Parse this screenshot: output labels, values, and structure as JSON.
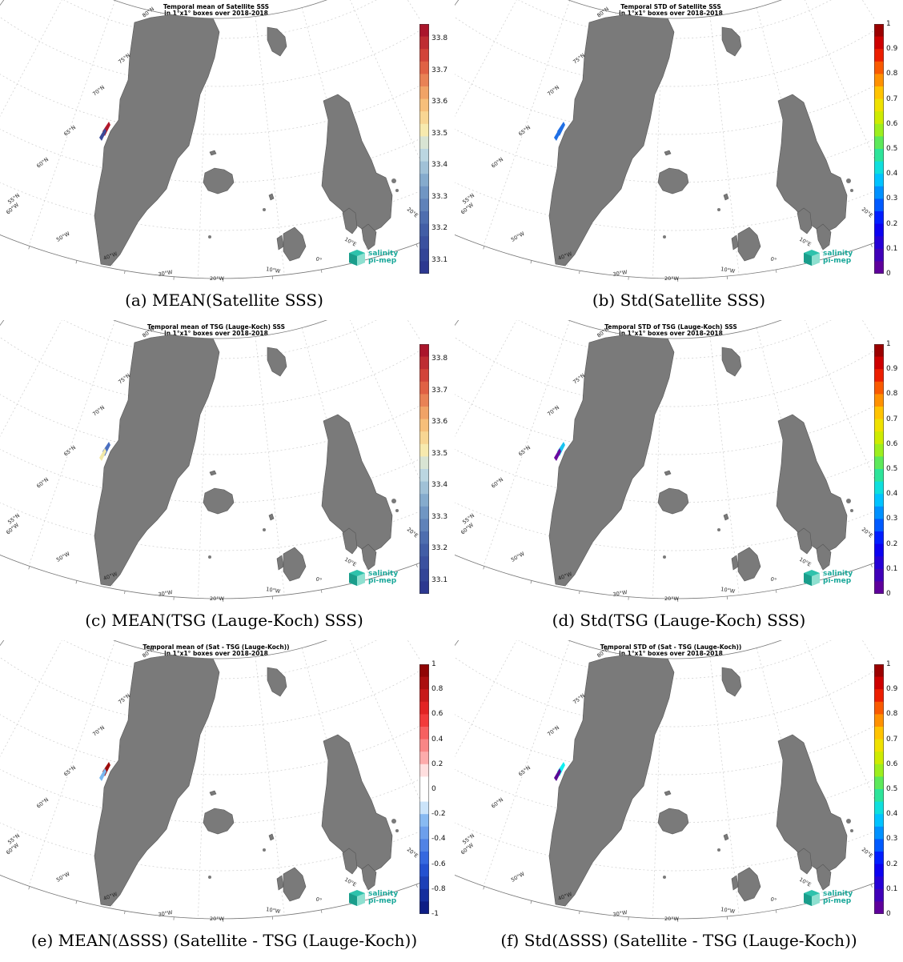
{
  "panels": [
    {
      "id": "a",
      "title_line1": "Temporal mean of Satellite SSS",
      "title_line2": "in 1°x1° boxes over 2018-2018",
      "caption": "(a) MEAN(Satellite SSS)",
      "colorbar": {
        "scale": "sss",
        "ticks": [
          "33.8",
          "33.7",
          "33.6",
          "33.5",
          "33.4",
          "33.3",
          "33.2",
          "33.1"
        ]
      },
      "coast_patch": [
        "#b2182b",
        "#3b4a9a"
      ]
    },
    {
      "id": "b",
      "title_line1": "Temporal STD of Satellite SSS",
      "title_line2": "in 1°x1° boxes over 2018-2018",
      "caption": "(b) Std(Satellite SSS)",
      "colorbar": {
        "scale": "jet",
        "ticks": [
          "1",
          "0.9",
          "0.8",
          "0.7",
          "0.6",
          "0.5",
          "0.4",
          "0.3",
          "0.2",
          "0.1",
          "0"
        ]
      },
      "coast_patch": [
        "#1f6fe5",
        "#1f6fe5"
      ]
    },
    {
      "id": "c",
      "title_line1": "Temporal mean of TSG (Lauge-Koch) SSS",
      "title_line2": "in 1°x1° boxes over 2018-2018",
      "caption": "(c) MEAN(TSG (Lauge-Koch) SSS)",
      "colorbar": {
        "scale": "sss",
        "ticks": [
          "33.8",
          "33.7",
          "33.6",
          "33.5",
          "33.4",
          "33.3",
          "33.2",
          "33.1"
        ]
      },
      "coast_patch": [
        "#4a6fc0",
        "#f2e9a8"
      ]
    },
    {
      "id": "d",
      "title_line1": "Temporal STD of TSG (Lauge-Koch) SSS",
      "title_line2": "in 1°x1° boxes over 2018-2018",
      "caption": "(d) Std(TSG (Lauge-Koch) SSS)",
      "colorbar": {
        "scale": "jet",
        "ticks": [
          "1",
          "0.9",
          "0.8",
          "0.7",
          "0.6",
          "0.5",
          "0.4",
          "0.3",
          "0.2",
          "0.1",
          "0"
        ]
      },
      "coast_patch": [
        "#19c4f0",
        "#6a0aa0"
      ]
    },
    {
      "id": "e",
      "title_line1": "Temporal mean of (Sat - TSG (Lauge-Koch))",
      "title_line2": "in 1°x1° boxes over 2018-2018",
      "caption": "(e) MEAN(ΔSSS) (Satellite - TSG (Lauge-Koch))",
      "colorbar": {
        "scale": "div",
        "ticks": [
          "1",
          "0.8",
          "0.6",
          "0.4",
          "0.2",
          "0",
          "-0.2",
          "-0.4",
          "-0.6",
          "-0.8",
          "-1"
        ]
      },
      "coast_patch": [
        "#9e0c0c",
        "#7ab8f0"
      ]
    },
    {
      "id": "f",
      "title_line1": "Temporal STD of (Sat - TSG (Lauge-Koch))",
      "title_line2": "in 1°x1° boxes over 2018-2018",
      "caption": "(f) Std(ΔSSS) (Satellite - TSG (Lauge-Koch))",
      "colorbar": {
        "scale": "jet",
        "ticks": [
          "1",
          "0.9",
          "0.8",
          "0.7",
          "0.6",
          "0.5",
          "0.4",
          "0.3",
          "0.2",
          "0.1",
          "0"
        ]
      },
      "coast_patch": [
        "#0ff0f0",
        "#5a0a96"
      ]
    }
  ],
  "map_labels": {
    "lat": [
      "80°N",
      "75°N",
      "70°N",
      "65°N",
      "60°N",
      "55°N"
    ],
    "lon": [
      "60°W",
      "50°W",
      "40°W",
      "30°W",
      "20°W",
      "10°W",
      "0°",
      "10°E",
      "20°E"
    ]
  },
  "logo": {
    "line1": "salinity",
    "line2": "pi-mep"
  },
  "colors": {
    "land": "#7a7a7a",
    "grid": "#cccccc",
    "frame": "#777777"
  }
}
